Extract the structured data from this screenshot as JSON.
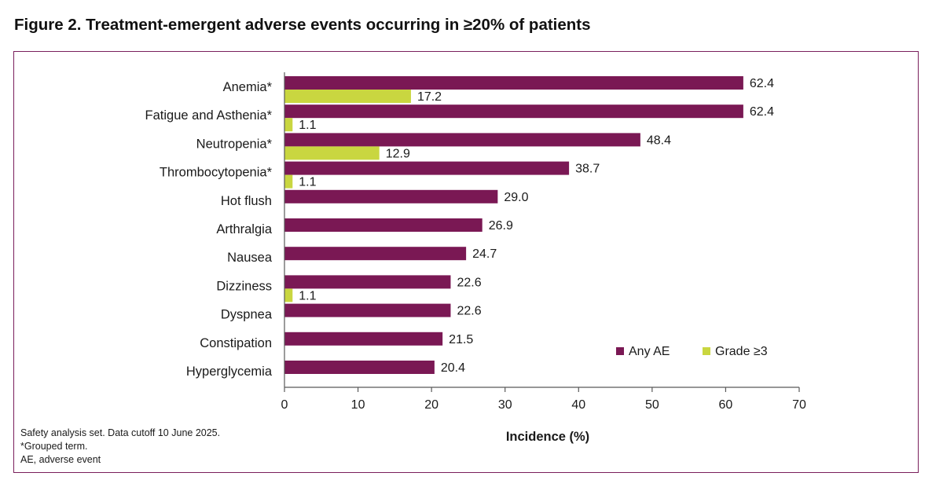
{
  "figure": {
    "title": "Figure 2. Treatment-emergent adverse events occurring in ≥20% of patients"
  },
  "colors": {
    "any_ae": "#7a1854",
    "grade3": "#c9d640",
    "frame": "#7a1f5c",
    "axis": "#595959"
  },
  "chart_data": {
    "type": "bar",
    "orientation": "horizontal",
    "title": "",
    "xlabel": "Incidence (%)",
    "ylabel": "",
    "xlim": [
      0,
      70
    ],
    "xticks": [
      0,
      10,
      20,
      30,
      40,
      50,
      60,
      70
    ],
    "grid": false,
    "legend_position": "bottom-right",
    "categories": [
      "Anemia*",
      "Fatigue and Asthenia*",
      "Neutropenia*",
      "Thrombocytopenia*",
      "Hot flush",
      "Arthralgia",
      "Nausea",
      "Dizziness",
      "Dyspnea",
      "Constipation",
      "Hyperglycemia"
    ],
    "series": [
      {
        "name": "Any AE",
        "values": [
          62.4,
          62.4,
          48.4,
          38.7,
          29.0,
          26.9,
          24.7,
          22.6,
          22.6,
          21.5,
          20.4
        ],
        "labels": [
          "62.4",
          "62.4",
          "48.4",
          "38.7",
          "29.0",
          "26.9",
          "24.7",
          "22.6",
          "22.6",
          "21.5",
          "20.4"
        ]
      },
      {
        "name": "Grade ≥3",
        "values": [
          17.2,
          1.1,
          12.9,
          1.1,
          null,
          null,
          null,
          1.1,
          null,
          null,
          null
        ],
        "labels": [
          "17.2",
          "1.1",
          "12.9",
          "1.1",
          null,
          null,
          null,
          "1.1",
          null,
          null,
          null
        ]
      }
    ]
  },
  "footnotes": {
    "line1": "Safety analysis set. Data cutoff 10 June 2025.",
    "line2": "*Grouped term.",
    "line3": "AE, adverse event"
  }
}
